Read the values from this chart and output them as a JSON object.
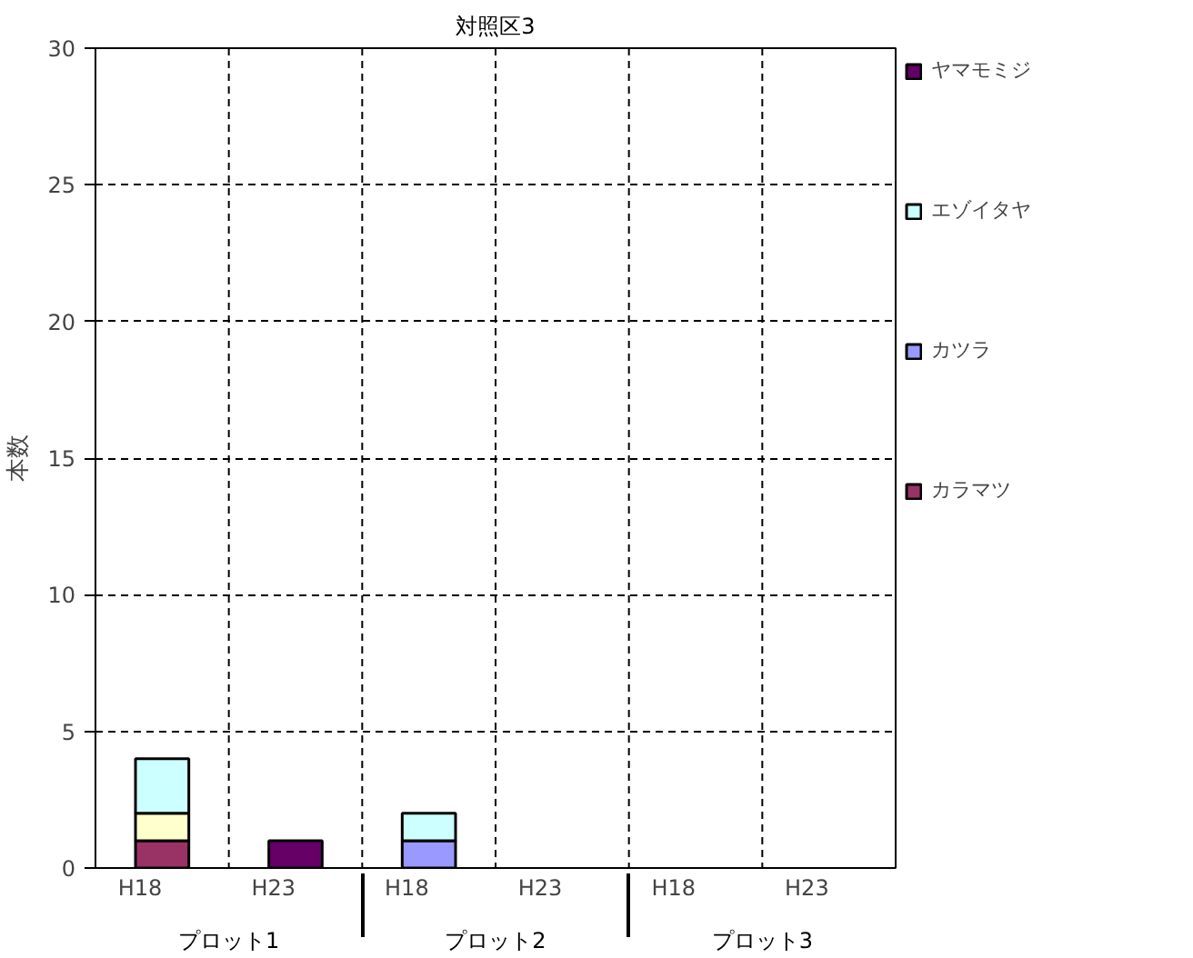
{
  "chart_data": {
    "type": "bar",
    "title": "対照区3",
    "ylabel": "本数",
    "stacked": true,
    "categories": [
      "H18",
      "H23",
      "H18",
      "H23",
      "H18",
      "H23"
    ],
    "annotations": [
      "プロット1",
      "プロット2",
      "プロット3"
    ],
    "series": [
      {
        "name": "カラマツ",
        "color": "#993366",
        "values": [
          1,
          null,
          null,
          null,
          null,
          null
        ]
      },
      {
        "color": "#ffffcc",
        "values": [
          1,
          null,
          null,
          null,
          null,
          null
        ]
      },
      {
        "name": "カツラ",
        "color": "#9999ff",
        "values": [
          null,
          null,
          1,
          null,
          null,
          null
        ]
      },
      {
        "name": "エゾイタヤ",
        "color": "#ccffff",
        "values": [
          2,
          null,
          1,
          null,
          null,
          null
        ]
      },
      {
        "name": "ヤマモミジ",
        "color": "#660066",
        "values": [
          null,
          1,
          null,
          null,
          null,
          null
        ]
      }
    ],
    "ylim": [
      0,
      30
    ],
    "yticks": [
      0,
      5,
      10,
      15,
      20,
      25,
      30
    ],
    "grid": true,
    "legend": "right"
  }
}
